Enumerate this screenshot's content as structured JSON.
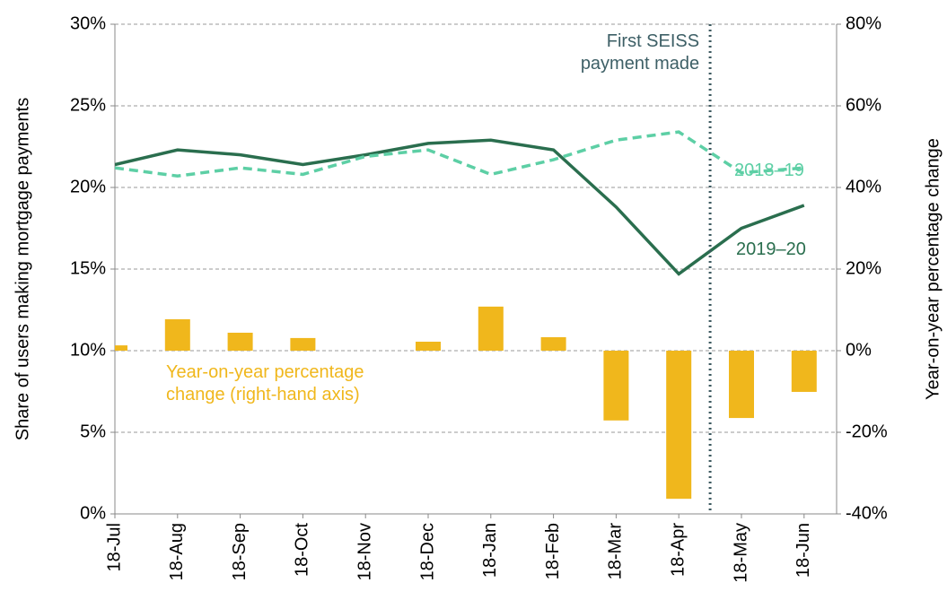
{
  "chart_data": {
    "type": "combo",
    "y_label": "Share of users making mortgage payments",
    "y2_label": "Year-on-year percentage change",
    "categories": [
      "18-Jul",
      "18-Aug",
      "18-Sep",
      "18-Oct",
      "18-Nov",
      "18-Dec",
      "18-Jan",
      "18-Feb",
      "18-Mar",
      "18-Apr",
      "18-May",
      "18-Jun"
    ],
    "series": [
      {
        "name": "2019–20",
        "type": "line",
        "color": "#2a6e4e",
        "dashed": false,
        "values": [
          21.4,
          22.3,
          22.0,
          21.4,
          22.0,
          22.7,
          22.9,
          22.3,
          18.8,
          14.7,
          17.5,
          18.9
        ]
      },
      {
        "name": "2018–19",
        "type": "line",
        "color": "#5dcfa5",
        "dashed": true,
        "values": [
          21.2,
          20.7,
          21.2,
          20.8,
          21.9,
          22.3,
          20.8,
          21.7,
          22.9,
          23.4,
          20.9,
          21.2
        ]
      },
      {
        "name": "Year-on-year percentage change (right-hand axis)",
        "type": "bar",
        "axis": "y2",
        "color": "#f0b71c",
        "values": [
          1.3,
          7.7,
          4.4,
          3.1,
          0,
          2.2,
          10.8,
          3.3,
          -17.1,
          -36.3,
          -16.5,
          -10.1
        ]
      }
    ],
    "annotations": [
      {
        "text": "First SEISS payment made",
        "category_position": 9.5
      }
    ],
    "ylim": [
      0,
      30
    ],
    "yticks": [
      {
        "value": 0,
        "label": "0%"
      },
      {
        "value": 5,
        "label": "5%"
      },
      {
        "value": 10,
        "label": "10%"
      },
      {
        "value": 15,
        "label": "15%"
      },
      {
        "value": 20,
        "label": "20%"
      },
      {
        "value": 25,
        "label": "25%"
      },
      {
        "value": 30,
        "label": "30%"
      }
    ],
    "y2lim": [
      -40,
      80
    ],
    "y2ticks": [
      {
        "value": -40,
        "label": "-40%"
      },
      {
        "value": -20,
        "label": "-20%"
      },
      {
        "value": 0,
        "label": "0%"
      },
      {
        "value": 20,
        "label": "20%"
      },
      {
        "value": 40,
        "label": "40%"
      },
      {
        "value": 60,
        "label": "60%"
      },
      {
        "value": 80,
        "label": "80%"
      }
    ],
    "grid": true
  }
}
